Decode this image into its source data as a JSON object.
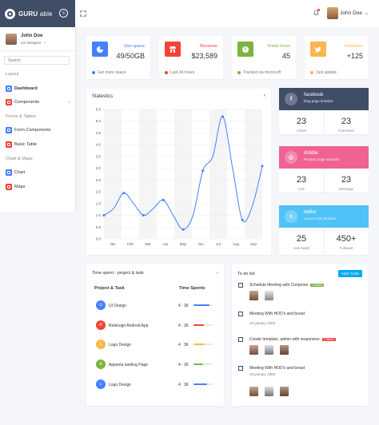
{
  "brand": {
    "bold": "GURU",
    "light": " able"
  },
  "header": {
    "user_name": "John Doe"
  },
  "sidebar": {
    "profile": {
      "name": "John Doe",
      "role": "UX Designer"
    },
    "search_placeholder": "Search",
    "captions": [
      "Layout",
      "Forms & Tables",
      "Chart & Maps"
    ],
    "items": [
      {
        "label": "Dashboard",
        "color": "#4680ff"
      },
      {
        "label": "Components",
        "color": "#f44236"
      },
      {
        "label": "Form Components",
        "color": "#4680ff"
      },
      {
        "label": "Basic Table",
        "color": "#f44236"
      },
      {
        "label": "Chart",
        "color": "#4680ff"
      },
      {
        "label": "Maps",
        "color": "#f44236"
      }
    ]
  },
  "stats": [
    {
      "title": "Use space",
      "value": "49/50GB",
      "foot": "Get more space",
      "color": "#4680ff",
      "icon": "pie-chart-icon"
    },
    {
      "title": "Revenue",
      "value": "$23,589",
      "foot": "Last 24 hours",
      "color": "#f44236",
      "icon": "store-icon"
    },
    {
      "title": "Fixed Issue",
      "value": "45",
      "foot": "Tracked via microsoft",
      "color": "#7cb342",
      "icon": "info-icon"
    },
    {
      "title": "Followers",
      "value": "+125",
      "foot": "Just update",
      "color": "#ffb64d",
      "icon": "twitter-icon"
    }
  ],
  "chart_data": {
    "type": "line",
    "title": "Statestics",
    "categories": [
      "Jan",
      "Feb",
      "Mar",
      "Apr",
      "May",
      "Jun",
      "Jul",
      "Aug",
      "Sep"
    ],
    "x": [
      0,
      1,
      2,
      3,
      4,
      5,
      6,
      7,
      8,
      9,
      10,
      11,
      12,
      13,
      14,
      15,
      16
    ],
    "values": [
      1.0,
      1.3,
      1.95,
      1.5,
      1.0,
      1.3,
      1.65,
      1.0,
      0.4,
      1.0,
      2.9,
      3.5,
      5.2,
      3.0,
      0.8,
      1.4,
      3.1
    ],
    "ylim": [
      0,
      5.5
    ],
    "yticks": [
      0,
      0.5,
      1,
      1.5,
      2,
      2.5,
      3,
      3.5,
      4,
      4.5,
      5,
      5.5
    ],
    "ytick_labels": [
      "0.0",
      "0.5",
      "1.0",
      "1.5",
      "2.0",
      "2.5",
      "3.0",
      "3.5",
      "4.0",
      "4.5",
      "5.0",
      "5.5"
    ],
    "grid": true,
    "color": "#4680ff"
  },
  "social": [
    {
      "name": "facebook",
      "sub": "blog page timeline",
      "a_val": "23",
      "a_lab": "Active",
      "b_val": "23",
      "b_lab": "Comment",
      "color": "#3f4d67",
      "icon": "facebook-icon",
      "glyph": "f"
    },
    {
      "name": "dribble",
      "sub": "Product page analysis",
      "a_val": "23",
      "a_lab": "Live",
      "b_val": "23",
      "b_lab": "Message",
      "color": "#f06292",
      "icon": "dribbble-icon",
      "glyph": "◎"
    },
    {
      "name": "twitter",
      "sub": "current new timeline",
      "a_val": "25",
      "a_lab": "new tweet",
      "b_val": "450+",
      "b_lab": "Follower",
      "color": "#4fc3f7",
      "icon": "twitter-icon",
      "glyph": "t"
    }
  ],
  "time_spent": {
    "title": "Time spent : project & task",
    "col_task": "Project & Task",
    "col_time": "Time Spents",
    "rows": [
      {
        "initial": "U",
        "name": "UI Design",
        "time": "4 : 36",
        "progress": 0.85,
        "color": "#4680ff"
      },
      {
        "initial": "R",
        "name": "Redesign Android App",
        "time": "4 : 36",
        "progress": 0.55,
        "color": "#f44236"
      },
      {
        "initial": "L",
        "name": "Logo Design",
        "time": "4 : 36",
        "progress": 0.6,
        "color": "#ffb64d"
      },
      {
        "initial": "A",
        "name": "Appesta landing Page",
        "time": "4 : 36",
        "progress": 0.5,
        "color": "#7cb342"
      },
      {
        "initial": "L",
        "name": "Logo Design",
        "time": "4 : 36",
        "progress": 0.7,
        "color": "#4680ff"
      }
    ]
  },
  "todo": {
    "title": "To do list",
    "add_label": "ADD TASK",
    "items": [
      {
        "text": "Schedule Meeting with Compnes",
        "badge": "1 Week",
        "badge_color": "#7cb342",
        "date": "",
        "avatars": 2
      },
      {
        "text": "Meeting With HOD's and borad",
        "badge": "",
        "badge_color": "",
        "date": "25 january 2003",
        "avatars": 0
      },
      {
        "text": "Create template, admin with responsive",
        "badge": "2 Week",
        "badge_color": "#f44236",
        "date": "",
        "avatars": 3
      },
      {
        "text": "Meeting With HOD's and borad",
        "badge": "",
        "badge_color": "",
        "date": "25 january 2003",
        "avatars": 3
      }
    ]
  }
}
